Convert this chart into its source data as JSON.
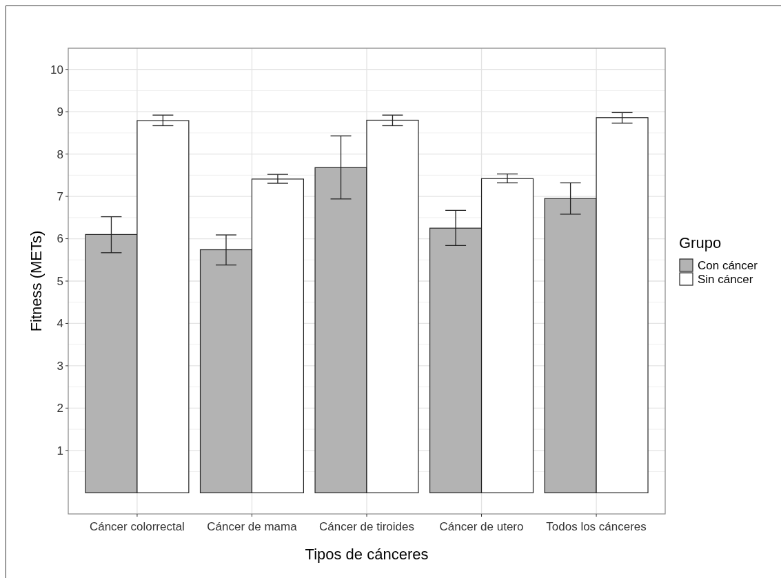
{
  "chart_data": {
    "type": "bar",
    "xlabel": "Tipos de cánceres",
    "ylabel": "Fitness (METs)",
    "legend_title": "Grupo",
    "categories": [
      "Cáncer colorrectal",
      "Cáncer de mama",
      "Cáncer de tiroides",
      "Cáncer de utero",
      "Todos los cánceres"
    ],
    "series": [
      {
        "name": "Con cáncer",
        "color": "#b3b3b3",
        "values": [
          6.1,
          5.74,
          7.68,
          6.25,
          6.95
        ],
        "errors": [
          [
            5.67,
            6.52
          ],
          [
            5.38,
            6.09
          ],
          [
            6.94,
            8.43
          ],
          [
            5.84,
            6.67
          ],
          [
            6.58,
            7.32
          ]
        ]
      },
      {
        "name": "Sin cáncer",
        "color": "#ffffff",
        "values": [
          8.79,
          7.41,
          8.8,
          7.42,
          8.86
        ],
        "errors": [
          [
            8.67,
            8.92
          ],
          [
            7.31,
            7.52
          ],
          [
            8.67,
            8.92
          ],
          [
            7.32,
            7.53
          ],
          [
            8.73,
            8.98
          ]
        ]
      }
    ],
    "ylim": [
      -0.5,
      10.5
    ],
    "yticks": [
      1,
      2,
      3,
      4,
      5,
      6,
      7,
      8,
      9,
      10
    ],
    "grid": true,
    "legend": "right"
  }
}
